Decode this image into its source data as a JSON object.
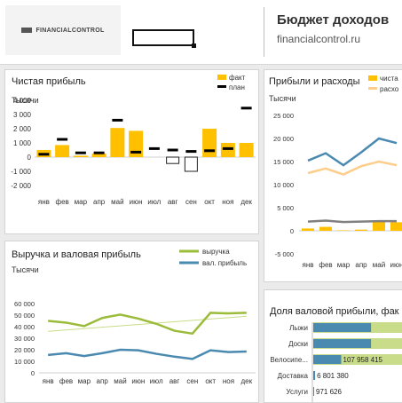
{
  "header": {
    "title": "Бюджет доходов",
    "subtitle": "financialcontrol.ru",
    "logo_text": "FINANCIALCONTROL"
  },
  "colors": {
    "orange": "#ffc000",
    "black": "#000000",
    "green": "#9bbb3a",
    "blue": "#4a89b0",
    "lightgreen": "#c8dc8a",
    "lightorange": "#fdcd8c",
    "gray": "#808080"
  },
  "net_profit": {
    "title": "Чистая прибыль",
    "unit": "Тысячи",
    "chart_data": {
      "type": "bar",
      "categories": [
        "янв",
        "фев",
        "мар",
        "апр",
        "май",
        "июн",
        "июл",
        "авг",
        "сен",
        "окт",
        "ноя",
        "дек"
      ],
      "series": [
        {
          "name": "факт",
          "values": [
            500,
            850,
            100,
            250,
            2050,
            1850,
            0,
            0,
            0,
            2000,
            1000,
            1000
          ]
        },
        {
          "name": "план",
          "values": [
            200,
            1250,
            300,
            300,
            2600,
            350,
            600,
            500,
            400,
            450,
            600,
            3450
          ]
        }
      ],
      "negative_boxes": [
        {
          "category": "авг",
          "from": 0,
          "to": -450
        },
        {
          "category": "сен",
          "from": 0,
          "to": -1000
        }
      ],
      "yticks": [
        "4 000",
        "3 000",
        "2 000",
        "1 000",
        "0",
        "-1 000",
        "-2 000"
      ],
      "ylim": [
        -2000,
        4000
      ]
    }
  },
  "profit_expenses": {
    "title": "Прибыли и расходы",
    "unit": "Тысячи",
    "legend": [
      "чиста",
      "расхо"
    ],
    "chart_data": {
      "type": "line",
      "categories": [
        "янв",
        "фев",
        "мар",
        "апр",
        "май",
        "июн"
      ],
      "series": [
        {
          "name": "чиста",
          "type": "bar",
          "values": [
            500,
            850,
            100,
            250,
            2050,
            1850
          ]
        },
        {
          "values": [
            15200,
            16800,
            14200,
            17000,
            20000,
            19000
          ]
        },
        {
          "name": "расхо",
          "values": [
            12500,
            13500,
            12200,
            14000,
            15000,
            14200
          ]
        },
        {
          "values": [
            2000,
            2200,
            1900,
            2000,
            2100,
            2100
          ]
        }
      ],
      "yticks": [
        "25 000",
        "20 000",
        "15 000",
        "10 000",
        "5 000",
        "0",
        "-5 000"
      ],
      "ylim": [
        -5000,
        25000
      ]
    }
  },
  "revenue": {
    "title": "Выручка и валовая прибыль",
    "unit": "Тысячи",
    "chart_data": {
      "type": "line",
      "categories": [
        "янв",
        "фев",
        "мар",
        "апр",
        "май",
        "июн",
        "июл",
        "авг",
        "сен",
        "окт",
        "ноя",
        "дек"
      ],
      "series": [
        {
          "name": "выручка",
          "values": [
            45000,
            43500,
            40500,
            47500,
            50500,
            47000,
            42500,
            36500,
            34000,
            52000,
            51500,
            52000
          ]
        },
        {
          "name": "вал. прибыль",
          "values": [
            15500,
            17000,
            14500,
            17000,
            20000,
            19500,
            16500,
            14000,
            12000,
            19500,
            18000,
            18500
          ]
        }
      ],
      "yticks": [
        "60 000",
        "50 000",
        "40 000",
        "30 000",
        "20 000",
        "10 000",
        "0"
      ],
      "ylim": [
        0,
        60000
      ]
    }
  },
  "gross_share": {
    "title": "Доля валовой прибыли, фак",
    "items": [
      {
        "label": "Лыжи",
        "value": "",
        "bar": 0.62
      },
      {
        "label": "Доски",
        "value": "",
        "bar": 0.62
      },
      {
        "label": "Велосипе...",
        "value": "107 958 415",
        "bar": 0.3
      },
      {
        "label": "Доставка",
        "value": "6 801 380",
        "bar": 0.02
      },
      {
        "label": "Услуги",
        "value": "971 626",
        "bar": 0.006
      }
    ]
  }
}
